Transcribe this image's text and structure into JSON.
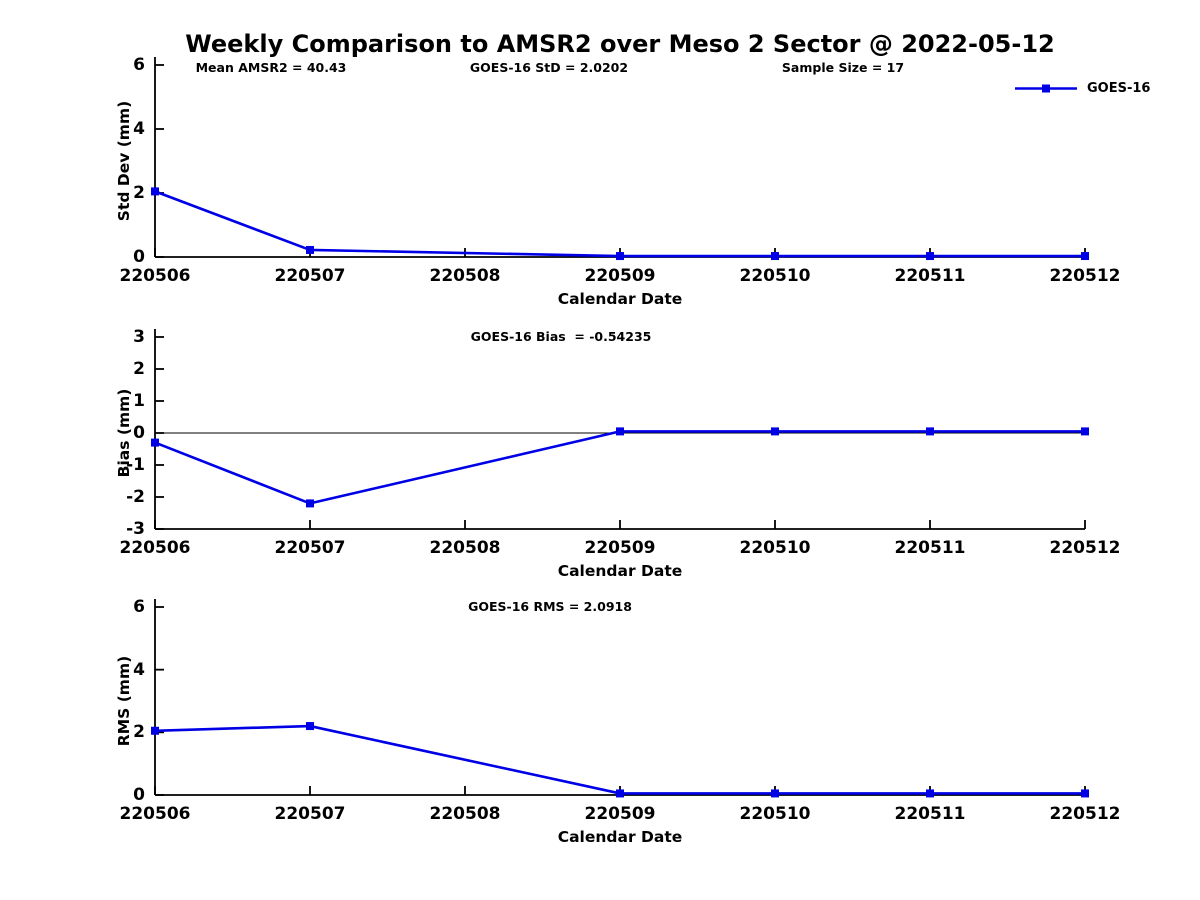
{
  "figure": {
    "title": "Weekly Comparison to AMSR2 over Meso 2 Sector @ 2022-05-12",
    "background": "#ffffff",
    "accent_color": "#0000e6",
    "legend": {
      "label": "GOES-16"
    }
  },
  "chart_data": [
    {
      "type": "line",
      "panel": "std-dev",
      "annotations": [
        "Mean AMSR2 = 40.43",
        "GOES-16 StD = 2.0202",
        "Sample Size = 17"
      ],
      "ylabel": "Std Dev (mm)",
      "xlabel": "Calendar Date",
      "ylim": [
        0,
        6
      ],
      "yticks": [
        0,
        2,
        4,
        6
      ],
      "xtick_labels": [
        "220506",
        "220507",
        "220508",
        "220509",
        "220510",
        "220511",
        "220512"
      ],
      "xlim": [
        220506,
        220512
      ],
      "zero_line": false,
      "grid": false,
      "legend_position": "top-right",
      "series": [
        {
          "name": "GOES-16",
          "color": "#0000e6",
          "marker": "square",
          "x": [
            220506,
            220507,
            220509,
            220510,
            220511,
            220512
          ],
          "y": [
            2.05,
            0.22,
            0.03,
            0.03,
            0.03,
            0.03
          ]
        }
      ]
    },
    {
      "type": "line",
      "panel": "bias",
      "annotations": [
        "GOES-16 Bias  = -0.54235"
      ],
      "ylabel": "Bias (mm)",
      "xlabel": "Calendar Date",
      "ylim": [
        -3,
        3
      ],
      "yticks": [
        -3,
        -2,
        -1,
        0,
        1,
        2,
        3
      ],
      "xtick_labels": [
        "220506",
        "220507",
        "220508",
        "220509",
        "220510",
        "220511",
        "220512"
      ],
      "xlim": [
        220506,
        220512
      ],
      "zero_line": true,
      "grid": false,
      "series": [
        {
          "name": "GOES-16",
          "color": "#0000e6",
          "marker": "square",
          "x": [
            220506,
            220507,
            220509,
            220510,
            220511,
            220512
          ],
          "y": [
            -0.3,
            -2.2,
            0.05,
            0.05,
            0.05,
            0.05
          ]
        }
      ]
    },
    {
      "type": "line",
      "panel": "rms",
      "annotations": [
        "GOES-16 RMS = 2.0918"
      ],
      "ylabel": "RMS (mm)",
      "xlabel": "Calendar Date",
      "ylim": [
        0,
        6
      ],
      "yticks": [
        0,
        2,
        4,
        6
      ],
      "xtick_labels": [
        "220506",
        "220507",
        "220508",
        "220509",
        "220510",
        "220511",
        "220512"
      ],
      "xlim": [
        220506,
        220512
      ],
      "zero_line": false,
      "grid": false,
      "series": [
        {
          "name": "GOES-16",
          "color": "#0000e6",
          "marker": "square",
          "x": [
            220506,
            220507,
            220509,
            220510,
            220511,
            220512
          ],
          "y": [
            2.05,
            2.2,
            0.05,
            0.05,
            0.05,
            0.05
          ]
        }
      ]
    }
  ]
}
